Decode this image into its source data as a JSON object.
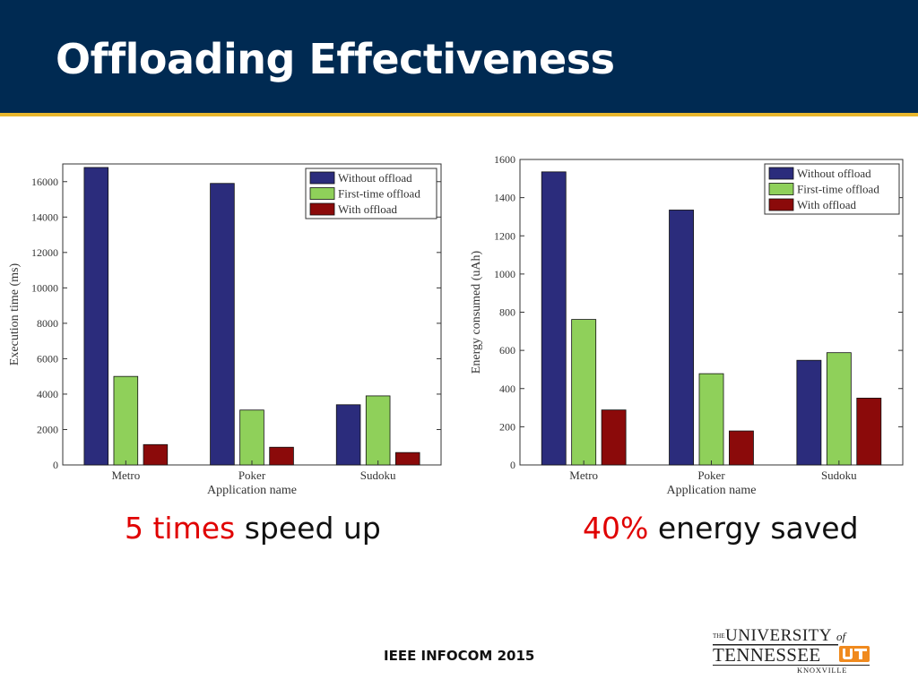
{
  "slide": {
    "title": "Offloading Effectiveness",
    "footer": "IEEE INFOCOM 2015",
    "caption_left": {
      "highlight": "5 times",
      "rest": " speed up"
    },
    "caption_right": {
      "highlight": "40%",
      "rest": " energy saved"
    },
    "colors": {
      "header": "#002a52",
      "stripe": "#e8b62c",
      "highlight": "#e00000"
    }
  },
  "logo": {
    "the": "THE",
    "university": "UNIVERSITY",
    "of": "of",
    "tennessee": "TENNESSEE",
    "knoxville": "KNOXVILLE",
    "colors": {
      "text": "#222222",
      "ut_orange": "#f08a1e"
    }
  },
  "chart_data": [
    {
      "type": "bar",
      "categories": [
        "Metro",
        "Poker",
        "Sudoku"
      ],
      "xlabel": "Application name",
      "ylabel": "Execution time (ms)",
      "ylim": [
        0,
        17000
      ],
      "yticks": [
        0,
        2000,
        4000,
        6000,
        8000,
        10000,
        12000,
        14000,
        16000
      ],
      "legend_position": "top-right",
      "series": [
        {
          "name": "Without offload",
          "color": "#2b2c7c",
          "values": [
            16800,
            15900,
            3400
          ]
        },
        {
          "name": "First-time offload",
          "color": "#8fd05a",
          "values": [
            5000,
            3100,
            3900
          ]
        },
        {
          "name": "With offload",
          "color": "#8b0a0a",
          "values": [
            1150,
            1000,
            700
          ]
        }
      ]
    },
    {
      "type": "bar",
      "categories": [
        "Metro",
        "Poker",
        "Sudoku"
      ],
      "xlabel": "Application name",
      "ylabel": "Energy consumed (uAh)",
      "ylim": [
        0,
        1600
      ],
      "yticks": [
        0,
        200,
        400,
        600,
        800,
        1000,
        1200,
        1400,
        1600
      ],
      "legend_position": "top-right",
      "series": [
        {
          "name": "Without offload",
          "color": "#2b2c7c",
          "values": [
            1535,
            1335,
            548
          ]
        },
        {
          "name": "First-time offload",
          "color": "#8fd05a",
          "values": [
            762,
            478,
            588
          ]
        },
        {
          "name": "With offload",
          "color": "#8b0a0a",
          "values": [
            288,
            178,
            350
          ]
        }
      ]
    }
  ]
}
